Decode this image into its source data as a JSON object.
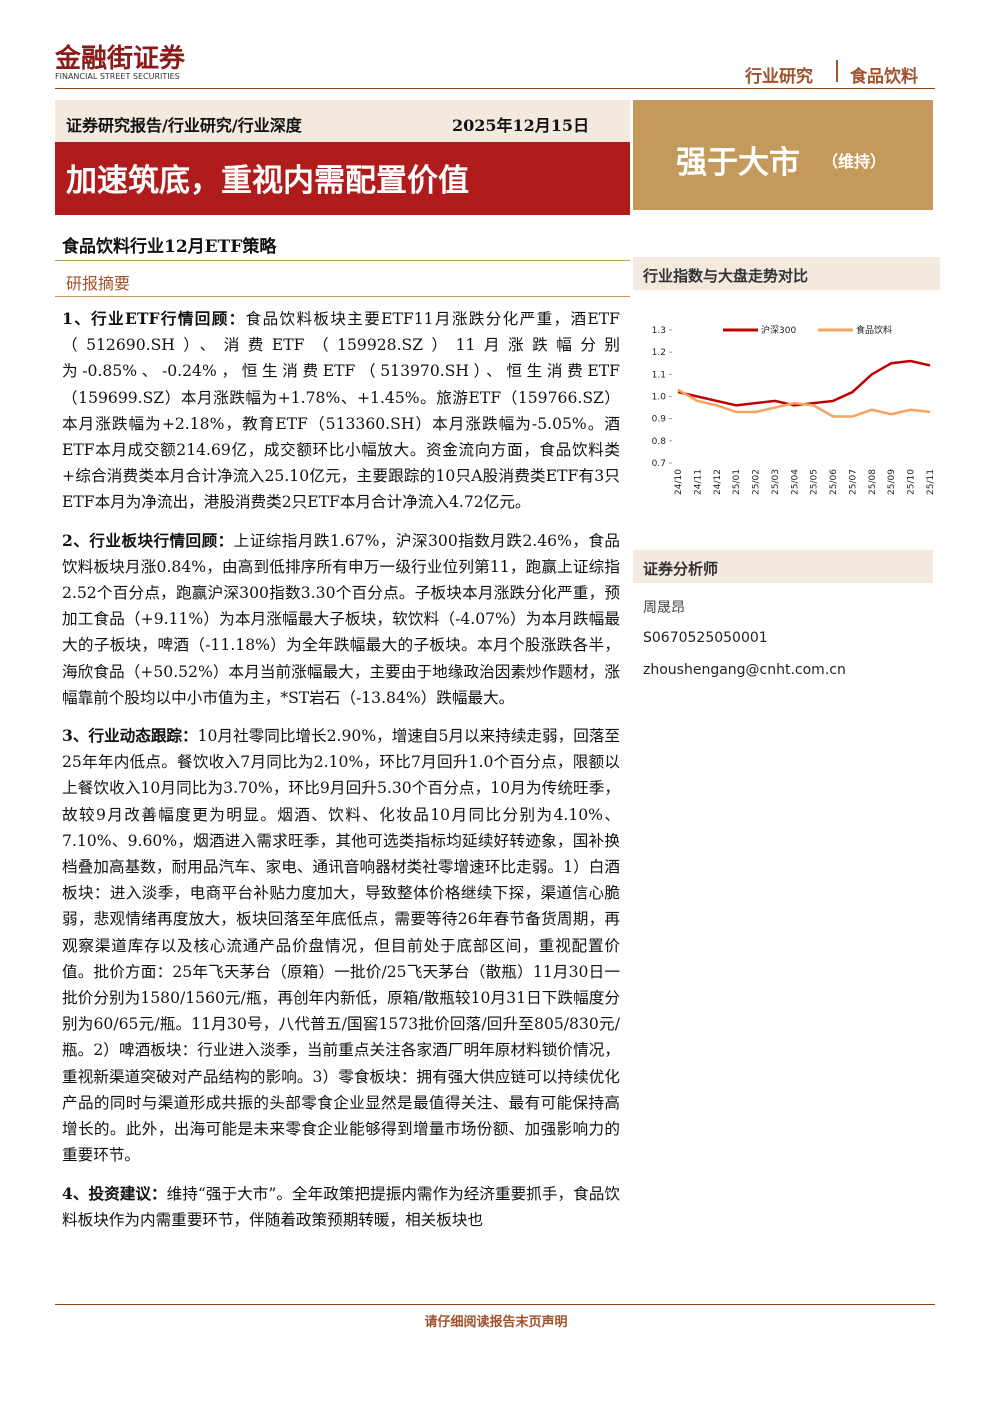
{
  "header": {
    "logo": "金融街证券",
    "logo_en": "FINANCIAL STREET SECURITIES",
    "category": "行业研究",
    "industry": "食品饮料"
  },
  "banner": {
    "report_type": "证券研究报告/行业研究/行业深度",
    "date": "2025年12月15日",
    "title": "加速筑底，重视内需配置价值",
    "rating": "强于大市",
    "rating_note": "（维持）"
  },
  "subtitle": "食品饮料行业12月ETF策略",
  "section_title": "研报摘要",
  "paragraphs": [
    {
      "lead": "1、行业ETF行情回顾：",
      "text": "食品饮料板块主要ETF11月涨跌分化严重，酒ETF（512690.SH）、消费ETF（159928.SZ）11月涨跌幅分别为-0.85%、-0.24%，恒生消费ETF（513970.SH）、恒生消费ETF（159699.SZ）本月涨跌幅为+1.78%、+1.45%。旅游ETF（159766.SZ）本月涨跌幅为+2.18%，教育ETF（513360.SH）本月涨跌幅为-5.05%。酒ETF本月成交额214.69亿，成交额环比小幅放大。资金流向方面，食品饮料类+综合消费类本月合计净流入25.10亿元，主要跟踪的10只A股消费类ETF有3只ETF本月为净流出，港股消费类2只ETF本月合计净流入4.72亿元。"
    },
    {
      "lead": "2、行业板块行情回顾：",
      "text": "上证综指月跌1.67%，沪深300指数月跌2.46%，食品饮料板块月涨0.84%，由高到低排序所有申万一级行业位列第11，跑赢上证综指2.52个百分点，跑赢沪深300指数3.30个百分点。子板块本月涨跌分化严重，预加工食品（+9.11%）为本月涨幅最大子板块，软饮料（-4.07%）为本月跌幅最大的子板块，啤酒（-11.18%）为全年跌幅最大的子板块。本月个股涨跌各半，海欣食品（+50.52%）本月当前涨幅最大，主要由于地缘政治因素炒作题材，涨幅靠前个股均以中小市值为主，*ST岩石（-13.84%）跌幅最大。"
    },
    {
      "lead": "3、行业动态跟踪：",
      "text": "10月社零同比增长2.90%，增速自5月以来持续走弱，回落至25年年内低点。餐饮收入7月同比为2.10%，环比7月回升1.0个百分点，限额以上餐饮收入10月同比为3.70%，环比9月回升5.30个百分点，10月为传统旺季，故较9月改善幅度更为明显。烟酒、饮料、化妆品10月同比分别为4.10%、7.10%、9.60%，烟酒进入需求旺季，其他可选类指标均延续好转迹象，国补换档叠加高基数，耐用品汽车、家电、通讯音响器材类社零增速环比走弱。1）白酒板块：进入淡季，电商平台补贴力度加大，导致整体价格继续下探，渠道信心脆弱，悲观情绪再度放大，板块回落至年底低点，需要等待26年春节备货周期，再观察渠道库存以及核心流通产品价盘情况，但目前处于底部区间，重视配置价值。批价方面：25年飞天茅台（原箱）一批价/25飞天茅台（散瓶）11月30日一批价分别为1580/1560元/瓶，再创年内新低，原箱/散瓶较10月31日下跌幅度分别为60/65元/瓶。11月30号，八代普五/国窖1573批价回落/回升至805/830元/瓶。2）啤酒板块：行业进入淡季，当前重点关注各家酒厂明年原材料锁价情况，重视新渠道突破对产品结构的影响。3）零食板块：拥有强大供应链可以持续优化产品的同时与渠道形成共振的头部零食企业显然是最值得关注、最有可能保持高增长的。此外，出海可能是未来零食企业能够得到增量市场份额、加强影响力的重要环节。"
    },
    {
      "lead": "4、投资建议：",
      "text": "维持“强于大市”。全年政策把提振内需作为经济重要抓手，食品饮料板块作为内需重要环节，伴随着政策预期转暖，相关板块也"
    }
  ],
  "sidebar": {
    "chart_heading": "行业指数与大盘走势对比",
    "analyst_heading": "证券分析师",
    "analyst_name": "周晟昂",
    "license": "S0670525050001",
    "email": "zhoushengang@cnht.com.cn"
  },
  "chart_data": {
    "type": "line",
    "categories": [
      "24/10",
      "24/11",
      "24/12",
      "25/01",
      "25/02",
      "25/03",
      "25/04",
      "25/05",
      "25/06",
      "25/07",
      "25/08",
      "25/09",
      "25/10",
      "25/11"
    ],
    "series": [
      {
        "name": "沪深300",
        "color": "#c00000",
        "values": [
          1.02,
          1.0,
          0.98,
          0.96,
          0.97,
          0.98,
          0.96,
          0.97,
          0.98,
          1.02,
          1.1,
          1.15,
          1.16,
          1.14
        ]
      },
      {
        "name": "食品饮料",
        "color": "#f4a460",
        "values": [
          1.03,
          0.98,
          0.96,
          0.93,
          0.93,
          0.95,
          0.97,
          0.96,
          0.91,
          0.91,
          0.94,
          0.92,
          0.94,
          0.93
        ]
      }
    ],
    "ylim": [
      0.7,
      1.3
    ],
    "yticks": [
      0.7,
      0.8,
      0.9,
      {
        "value": 1,
        "label": "1.0"
      },
      1.1,
      1.2,
      1.3
    ],
    "legend": "top"
  },
  "footer": "请仔细阅读报告末页声明"
}
